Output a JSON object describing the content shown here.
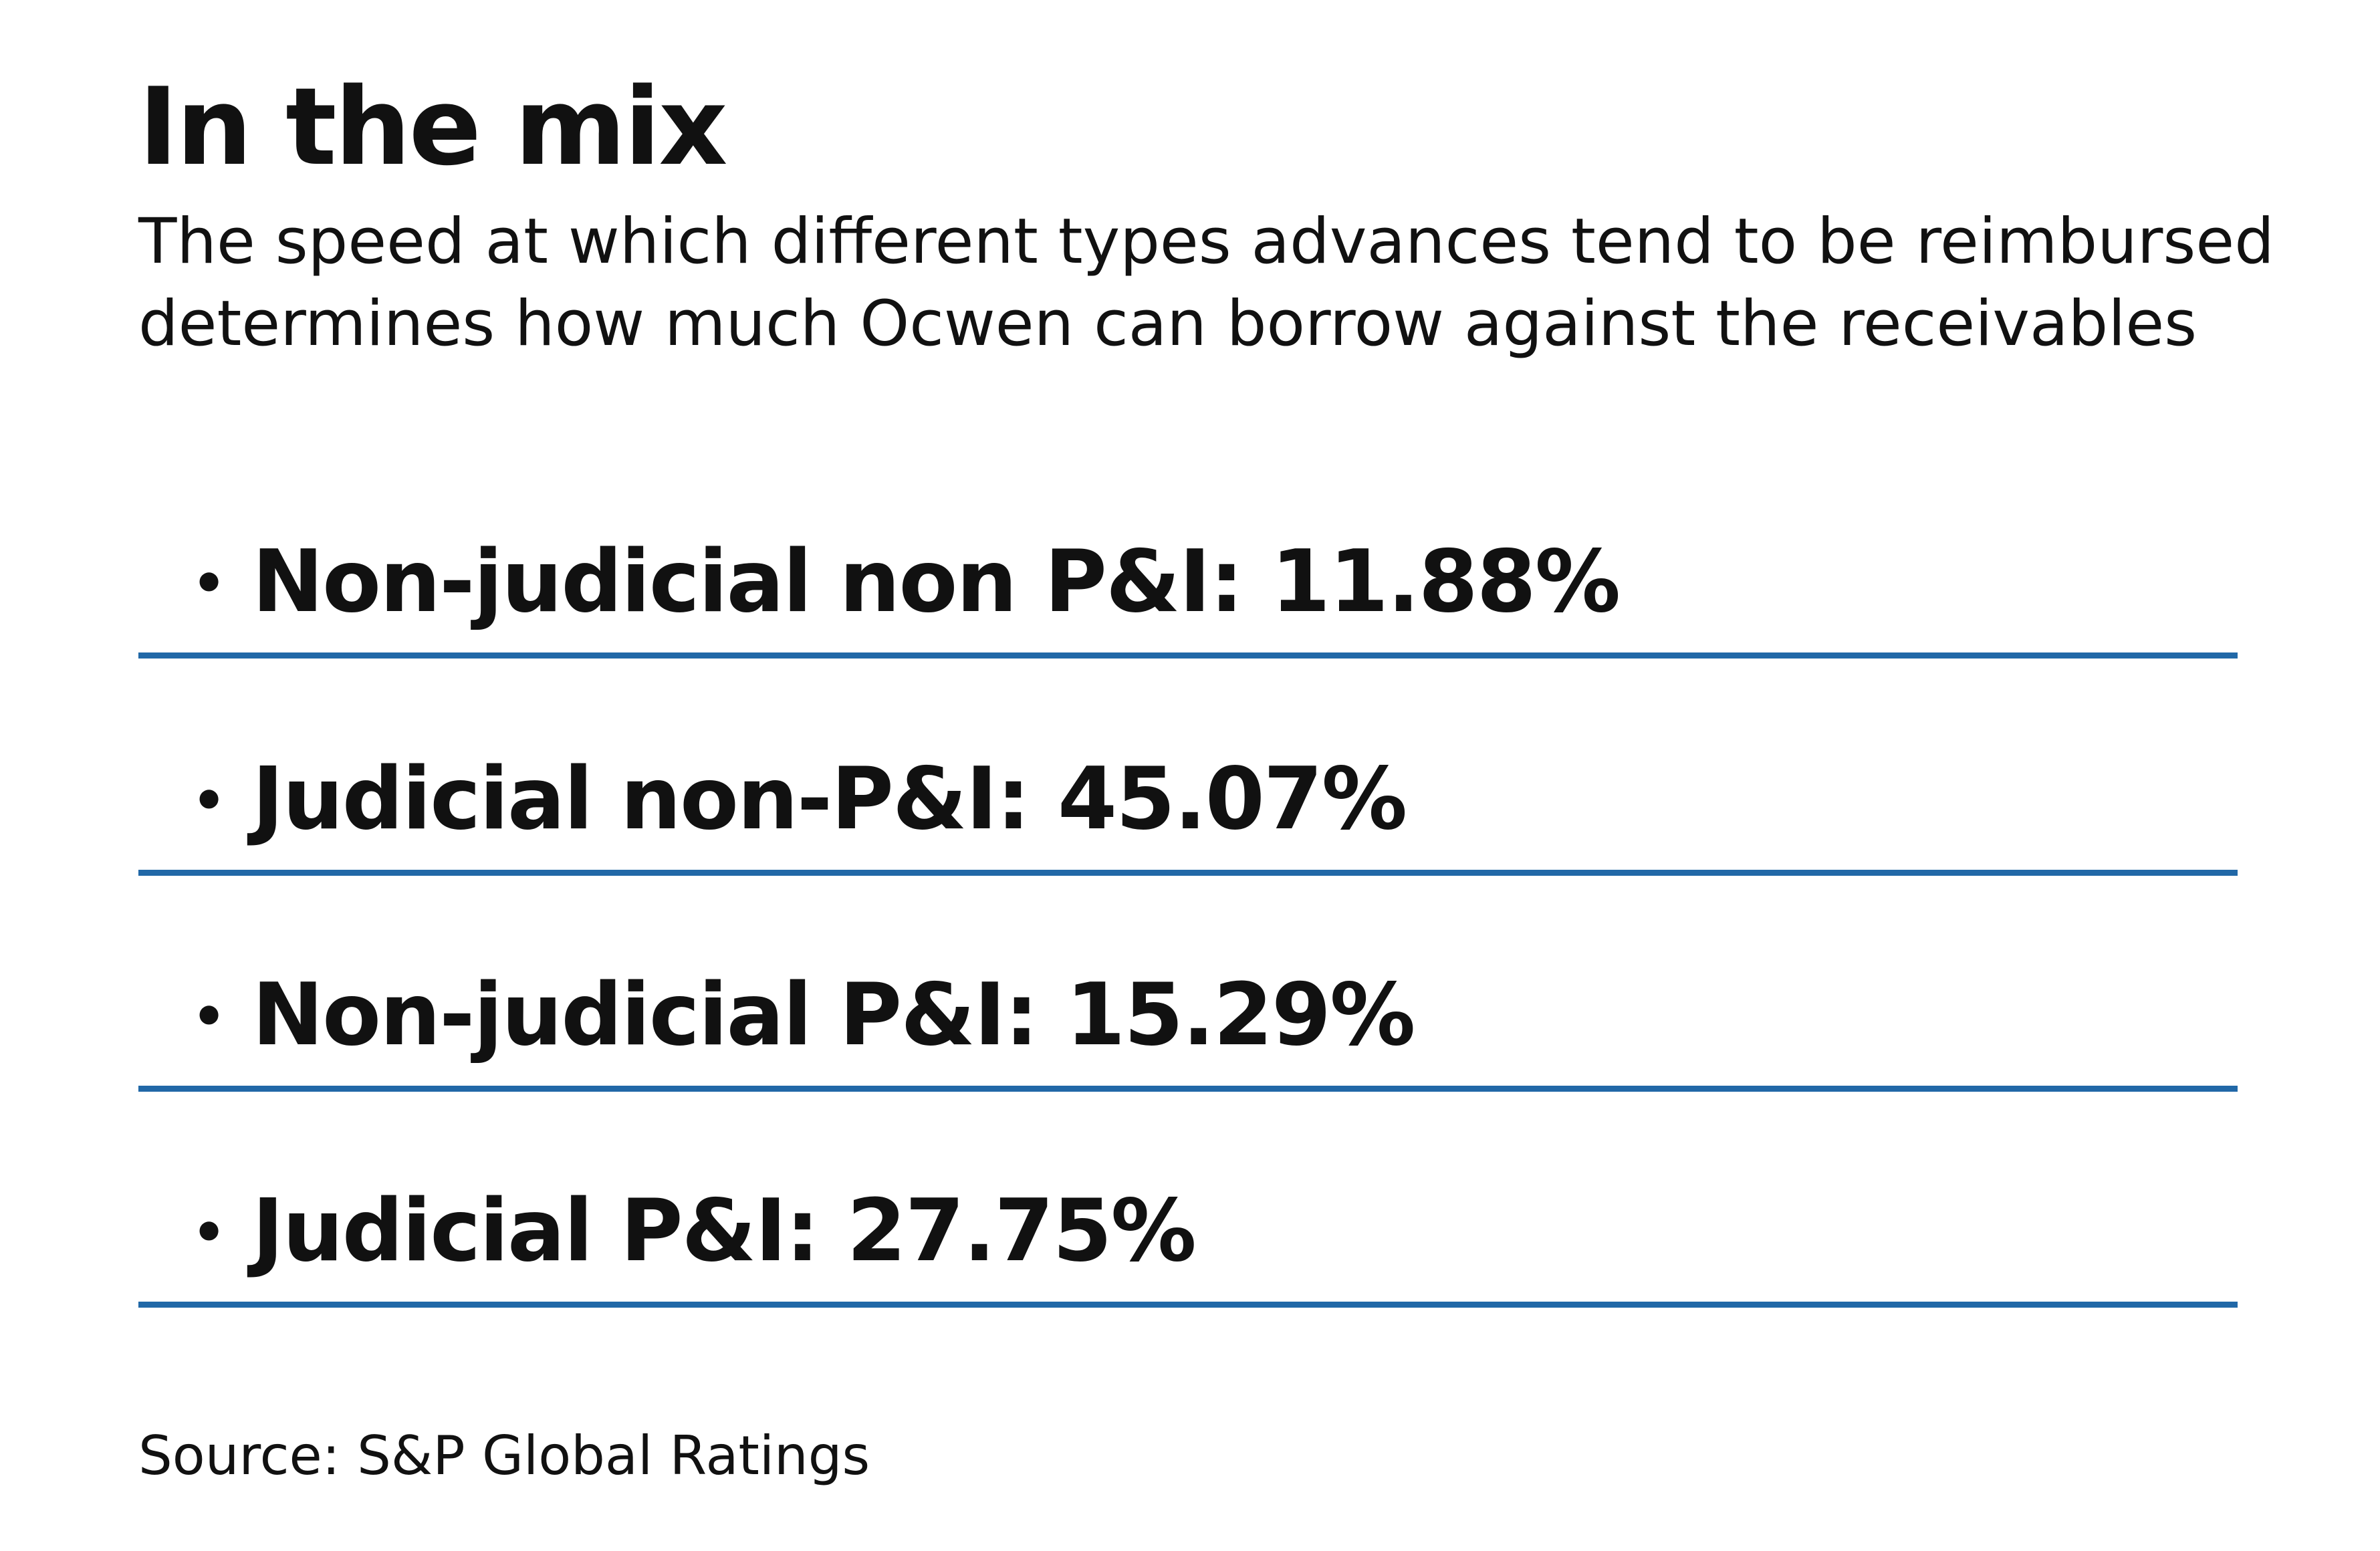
{
  "title": "In the mix",
  "subtitle": "The speed at which different types advances tend to be reimbursed determines how much Ocwen can borrow against the receivables",
  "bullet_symbol": "•",
  "items": [
    {
      "label": "Non-judicial non P&I: 11.88%"
    },
    {
      "label": "Judicial non-P&I: 45.07%"
    },
    {
      "label": "Non-judicial P&I: 15.29%"
    },
    {
      "label": "Judicial P&I: 27.75%"
    }
  ],
  "source": "Source: S&P Global Ratings",
  "colors": {
    "divider": "#2168a7",
    "text": "#111111",
    "background": "#ffffff"
  }
}
